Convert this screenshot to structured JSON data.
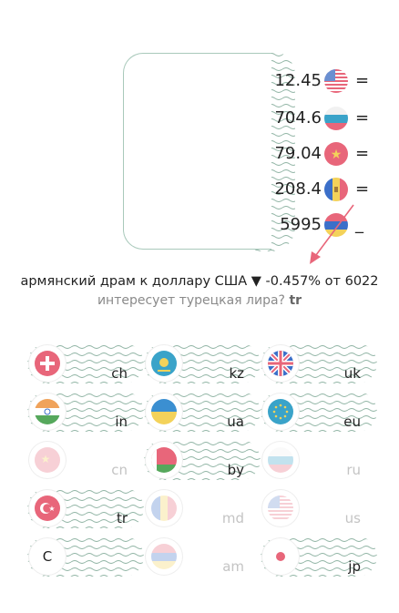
{
  "converter": {
    "rows": [
      {
        "value": "12.45",
        "icon": "us-flag-icon",
        "symbol": "="
      },
      {
        "value": "704.6",
        "icon": "ru-flag-icon",
        "symbol": "="
      },
      {
        "value": "79.04",
        "icon": "cn-flag-icon",
        "symbol": "="
      },
      {
        "value": "208.4",
        "icon": "md-flag-icon",
        "symbol": "="
      },
      {
        "value": "5995",
        "icon": "am-flag-icon",
        "symbol": "_"
      }
    ]
  },
  "summary": "армянский драм к доллару США ▼ -0.457% от 6022",
  "hint": {
    "text": "интересует турецкая лира?",
    "link": "tr"
  },
  "currencies": [
    {
      "code": "ch",
      "icon": "ch-flag-icon",
      "active": true
    },
    {
      "code": "kz",
      "icon": "kz-flag-icon",
      "active": true
    },
    {
      "code": "uk",
      "icon": "uk-flag-icon",
      "active": true
    },
    {
      "code": "in",
      "icon": "in-flag-icon",
      "active": true
    },
    {
      "code": "ua",
      "icon": "ua-flag-icon",
      "active": true
    },
    {
      "code": "eu",
      "icon": "eu-flag-icon",
      "active": true
    },
    {
      "code": "cn",
      "icon": "cn-flag-icon",
      "active": false
    },
    {
      "code": "by",
      "icon": "by-flag-icon",
      "active": true
    },
    {
      "code": "ru",
      "icon": "ru-flag-icon",
      "active": false
    },
    {
      "code": "tr",
      "icon": "tr-flag-icon",
      "active": true
    },
    {
      "code": "md",
      "icon": "md-flag-icon",
      "active": false
    },
    {
      "code": "us",
      "icon": "us-flag-icon",
      "active": false
    },
    {
      "code": "",
      "icon": "letter-c-icon",
      "letter": "C",
      "active": true
    },
    {
      "code": "am",
      "icon": "am-flag-icon",
      "active": false
    },
    {
      "code": "jp",
      "icon": "jp-flag-icon",
      "active": true
    }
  ],
  "colors": {
    "accent": "#e8667a",
    "wave": "#a9c9bb"
  }
}
